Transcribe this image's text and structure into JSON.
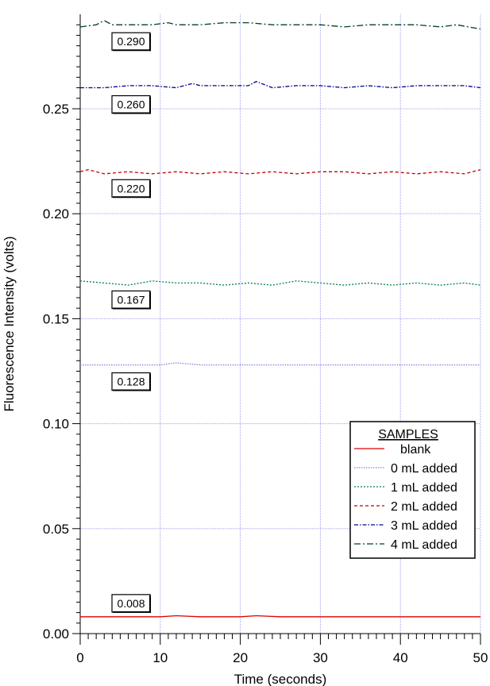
{
  "chart_data": {
    "type": "line",
    "title": "",
    "xlabel": "Time (seconds)",
    "ylabel": "Fluorescence Intensity (volts)",
    "xlim": [
      0,
      50
    ],
    "ylim": [
      0,
      0.295
    ],
    "xticks": [
      "0",
      "10",
      "20",
      "30",
      "40",
      "50"
    ],
    "yticks": [
      "0.00",
      "0.05",
      "0.10",
      "0.15",
      "0.20",
      "0.25"
    ],
    "grid": true,
    "legend_title": "SAMPLES",
    "legend_position": "bottom-right",
    "series": [
      {
        "name": "blank",
        "color": "#e00000",
        "dash": "solid",
        "label": "0.008",
        "x": [
          0,
          5,
          10,
          12,
          15,
          20,
          22,
          25,
          30,
          35,
          40,
          45,
          50
        ],
        "y": [
          0.008,
          0.008,
          0.008,
          0.0085,
          0.008,
          0.008,
          0.0085,
          0.008,
          0.008,
          0.008,
          0.008,
          0.008,
          0.008
        ]
      },
      {
        "name": "0 mL added",
        "color": "#8080e0",
        "dash": "dot-fine",
        "label": "0.128",
        "x": [
          0,
          5,
          10,
          12,
          15,
          20,
          25,
          30,
          35,
          40,
          45,
          50
        ],
        "y": [
          0.128,
          0.128,
          0.128,
          0.129,
          0.128,
          0.128,
          0.128,
          0.128,
          0.128,
          0.128,
          0.128,
          0.128
        ]
      },
      {
        "name": "1 mL added",
        "color": "#008040",
        "dash": "dot",
        "label": "0.167",
        "x": [
          0,
          3,
          6,
          9,
          12,
          15,
          18,
          21,
          24,
          27,
          30,
          33,
          36,
          39,
          42,
          45,
          48,
          50
        ],
        "y": [
          0.168,
          0.167,
          0.166,
          0.168,
          0.167,
          0.167,
          0.166,
          0.167,
          0.166,
          0.168,
          0.167,
          0.166,
          0.167,
          0.166,
          0.167,
          0.166,
          0.167,
          0.166
        ]
      },
      {
        "name": "2 mL added",
        "color": "#c00000",
        "dash": "dash",
        "label": "0.220",
        "x": [
          0,
          1,
          3,
          6,
          9,
          12,
          15,
          18,
          21,
          24,
          27,
          30,
          33,
          36,
          39,
          42,
          45,
          48,
          50
        ],
        "y": [
          0.22,
          0.221,
          0.219,
          0.22,
          0.219,
          0.22,
          0.219,
          0.22,
          0.219,
          0.22,
          0.219,
          0.22,
          0.22,
          0.219,
          0.22,
          0.219,
          0.22,
          0.219,
          0.221
        ]
      },
      {
        "name": "3 mL added",
        "color": "#000090",
        "dash": "dashdot",
        "label": "0.260",
        "x": [
          0,
          3,
          6,
          9,
          12,
          14,
          15,
          18,
          21,
          22,
          24,
          27,
          30,
          33,
          36,
          39,
          42,
          45,
          48,
          50
        ],
        "y": [
          0.26,
          0.26,
          0.261,
          0.261,
          0.26,
          0.262,
          0.261,
          0.261,
          0.261,
          0.263,
          0.26,
          0.261,
          0.261,
          0.26,
          0.261,
          0.26,
          0.261,
          0.261,
          0.261,
          0.26
        ]
      },
      {
        "name": "4 mL added",
        "color": "#004020",
        "dash": "dashdot-long",
        "label": "0.290",
        "x": [
          0,
          2,
          3,
          4,
          6,
          9,
          11,
          12,
          15,
          18,
          21,
          24,
          27,
          30,
          33,
          36,
          39,
          42,
          45,
          47,
          50
        ],
        "y": [
          0.289,
          0.29,
          0.292,
          0.29,
          0.29,
          0.29,
          0.291,
          0.29,
          0.29,
          0.291,
          0.291,
          0.29,
          0.29,
          0.29,
          0.289,
          0.29,
          0.29,
          0.29,
          0.289,
          0.29,
          0.288
        ]
      }
    ]
  }
}
